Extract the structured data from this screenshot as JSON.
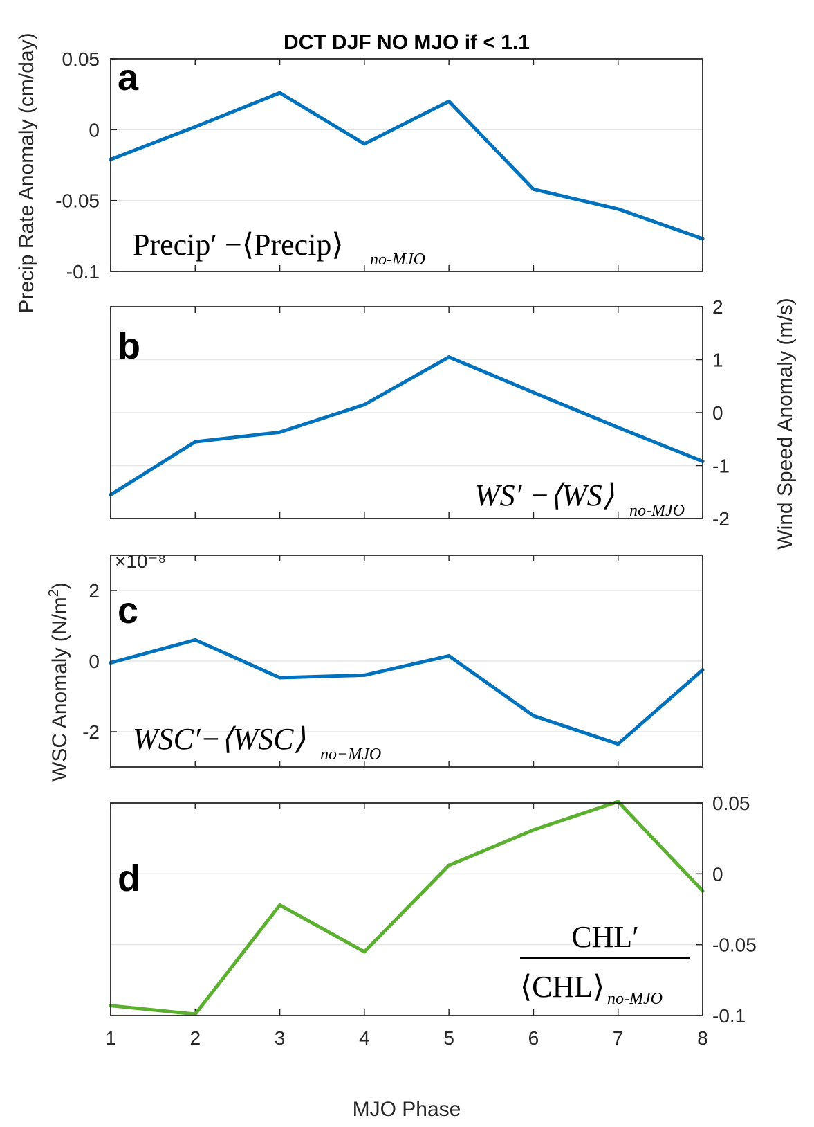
{
  "title": "DCT DJF NO MJO if < 1.1",
  "xlabel": "MJO Phase",
  "x_ticks": [
    "1",
    "2",
    "3",
    "4",
    "5",
    "6",
    "7",
    "8"
  ],
  "colors": {
    "blue": "#0072BD",
    "green": "#5BB030",
    "grid": "#e6e6e6",
    "axis": "#262626"
  },
  "chart_data": [
    {
      "type": "line",
      "panel": "a",
      "ylabel": "Precip Rate Anomaly (cm/day)",
      "yaxis_side": "left",
      "ylim": [
        -0.1,
        0.05
      ],
      "y_ticks": [
        0.05,
        0,
        -0.05,
        -0.1
      ],
      "y_tick_labels": [
        "0.05",
        "0",
        "-0.05",
        "-0.1"
      ],
      "x": [
        1,
        2,
        3,
        4,
        5,
        6,
        7,
        8
      ],
      "y": [
        -0.021,
        0.002,
        0.026,
        -0.01,
        0.02,
        -0.042,
        -0.056,
        -0.077
      ],
      "color": "#0072BD",
      "formula": {
        "main": "Precip′ −⟨Precip⟩",
        "sub": "no-MJO"
      }
    },
    {
      "type": "line",
      "panel": "b",
      "ylabel": "Wind Speed Anomaly (m/s)",
      "yaxis_side": "right",
      "ylim": [
        -2,
        2
      ],
      "y_ticks": [
        2,
        1,
        0,
        -1,
        -2
      ],
      "y_tick_labels": [
        "2",
        "1",
        "0",
        "-1",
        "-2"
      ],
      "x": [
        1,
        2,
        3,
        4,
        5,
        6,
        7,
        8
      ],
      "y": [
        -1.55,
        -0.55,
        -0.37,
        0.15,
        1.05,
        0.38,
        -0.28,
        -0.92
      ],
      "color": "#0072BD",
      "formula": {
        "main": "WS′ −⟨WS⟩",
        "sub": "no-MJO"
      }
    },
    {
      "type": "line",
      "panel": "c",
      "ylabel": "WSC Anomaly (N/m²)",
      "yaxis_side": "left",
      "exponent_label": "×10⁻⁸",
      "ylim": [
        -3,
        3
      ],
      "y_ticks": [
        2,
        0,
        -2
      ],
      "y_tick_labels": [
        "2",
        "0",
        "-2"
      ],
      "x": [
        1,
        2,
        3,
        4,
        5,
        6,
        7,
        8
      ],
      "y": [
        -0.05,
        0.6,
        -0.47,
        -0.4,
        0.15,
        -1.55,
        -2.35,
        -0.25
      ],
      "color": "#0072BD",
      "formula": {
        "main": "WSC′−⟨WSC⟩",
        "sub": "no−MJO"
      }
    },
    {
      "type": "line",
      "panel": "d",
      "ylabel": "",
      "yaxis_side": "right",
      "ylim": [
        -0.1,
        0.05
      ],
      "y_ticks": [
        0.05,
        0,
        -0.05,
        -0.1
      ],
      "y_tick_labels": [
        "0.05",
        "0",
        "-0.05",
        "-0.1"
      ],
      "x": [
        1,
        2,
        3,
        4,
        5,
        6,
        7,
        8
      ],
      "y": [
        -0.093,
        -0.099,
        -0.022,
        -0.055,
        0.006,
        0.031,
        0.051,
        -0.012
      ],
      "color": "#5BB030",
      "formula": {
        "numerator": "CHL′",
        "denominator": "⟨CHL⟩",
        "sub": "no-MJO"
      }
    }
  ]
}
